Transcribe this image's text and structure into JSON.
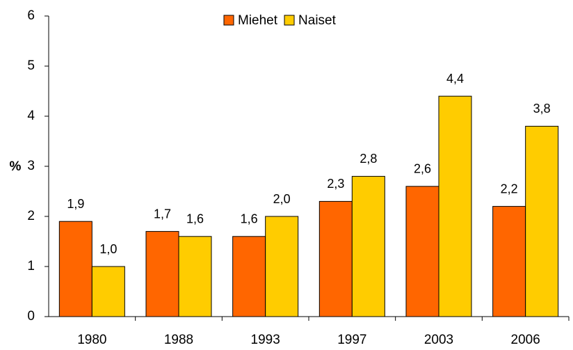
{
  "chart_data": {
    "type": "bar",
    "y_label": "%",
    "categories": [
      "1980",
      "1988",
      "1993",
      "1997",
      "2003",
      "2006"
    ],
    "series": [
      {
        "name": "Miehet",
        "color": "#ff6600",
        "values": [
          1.9,
          1.7,
          1.6,
          2.3,
          2.6,
          2.2
        ],
        "value_labels": [
          "1,9",
          "1,7",
          "1,6",
          "2,3",
          "2,6",
          "2,2"
        ]
      },
      {
        "name": "Naiset",
        "color": "#ffcc00",
        "values": [
          1.0,
          1.6,
          2.0,
          2.8,
          4.4,
          3.8
        ],
        "value_labels": [
          "1,0",
          "1,6",
          "2,0",
          "2,8",
          "4,4",
          "3,8"
        ]
      }
    ],
    "ylim": [
      0,
      6
    ],
    "yticks": [
      0,
      1,
      2,
      3,
      4,
      5,
      6
    ],
    "grid": false,
    "legend": "top"
  }
}
